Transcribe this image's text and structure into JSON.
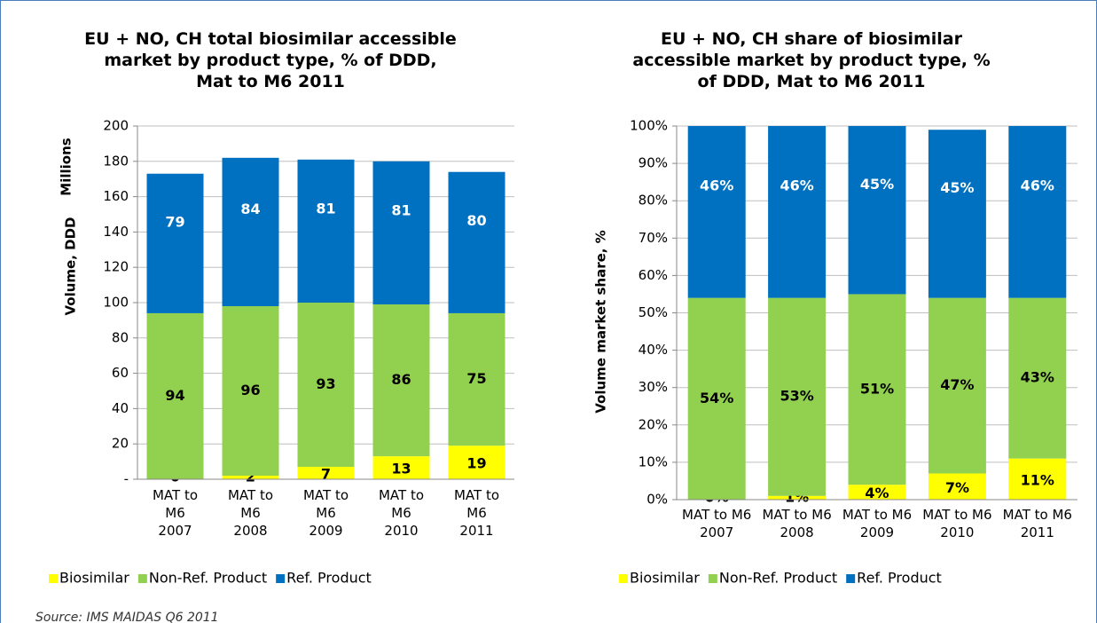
{
  "chart_data": [
    {
      "type": "bar",
      "stacked": true,
      "title": "EU + NO, CH total biosimilar accessible market by product type, % of DDD, Mat to M6 2011",
      "ylabel": "Volume, DDD",
      "yunit": "Millions",
      "categories": [
        "MAT to M6 2007",
        "MAT to M6 2008",
        "MAT to M6 2009",
        "MAT to M6 2010",
        "MAT to M6 2011"
      ],
      "series": [
        {
          "name": "Biosimilar",
          "color": "#ffff00",
          "values": [
            0,
            2,
            7,
            13,
            19
          ]
        },
        {
          "name": "Non-Ref. Product",
          "color": "#92d050",
          "values": [
            94,
            96,
            93,
            86,
            75
          ]
        },
        {
          "name": "Ref. Product",
          "color": "#0070c0",
          "values": [
            79,
            84,
            81,
            81,
            80
          ]
        }
      ],
      "ylim": [
        0,
        200
      ],
      "yticks": [
        {
          "value": 0,
          "label": "-"
        },
        20,
        40,
        60,
        80,
        100,
        120,
        140,
        160,
        180,
        200
      ],
      "grid": true,
      "legend": "bottom"
    },
    {
      "type": "bar",
      "stacked": true,
      "title": "EU + NO, CH share of biosimilar accessible market by product type, % of DDD, Mat to M6 2011",
      "ylabel": "Volume market share, %",
      "categories": [
        "MAT to M6 2007",
        "MAT to M6 2008",
        "MAT to M6 2009",
        "MAT to M6 2010",
        "MAT to M6 2011"
      ],
      "series": [
        {
          "name": "Biosimilar",
          "color": "#ffff00",
          "values": [
            0,
            1,
            4,
            7,
            11
          ],
          "value_labels": [
            "0%",
            "1%",
            "4%",
            "7%",
            "11%"
          ]
        },
        {
          "name": "Non-Ref. Product",
          "color": "#92d050",
          "values": [
            54,
            53,
            51,
            47,
            43
          ],
          "value_labels": [
            "54%",
            "53%",
            "51%",
            "47%",
            "43%"
          ]
        },
        {
          "name": "Ref. Product",
          "color": "#0070c0",
          "values": [
            46,
            46,
            45,
            45,
            46
          ],
          "value_labels": [
            "46%",
            "46%",
            "45%",
            "45%",
            "46%"
          ]
        }
      ],
      "ylim": [
        0,
        100
      ],
      "yticks": [
        {
          "value": 0,
          "label": "0%"
        },
        {
          "value": 10,
          "label": "10%"
        },
        {
          "value": 20,
          "label": "20%"
        },
        {
          "value": 30,
          "label": "30%"
        },
        {
          "value": 40,
          "label": "40%"
        },
        {
          "value": 50,
          "label": "50%"
        },
        {
          "value": 60,
          "label": "60%"
        },
        {
          "value": 70,
          "label": "70%"
        },
        {
          "value": 80,
          "label": "80%"
        },
        {
          "value": 90,
          "label": "90%"
        },
        {
          "value": 100,
          "label": "100%"
        }
      ],
      "grid": true,
      "legend": "bottom"
    }
  ],
  "source": "Source: IMS MAIDAS Q6 2011"
}
